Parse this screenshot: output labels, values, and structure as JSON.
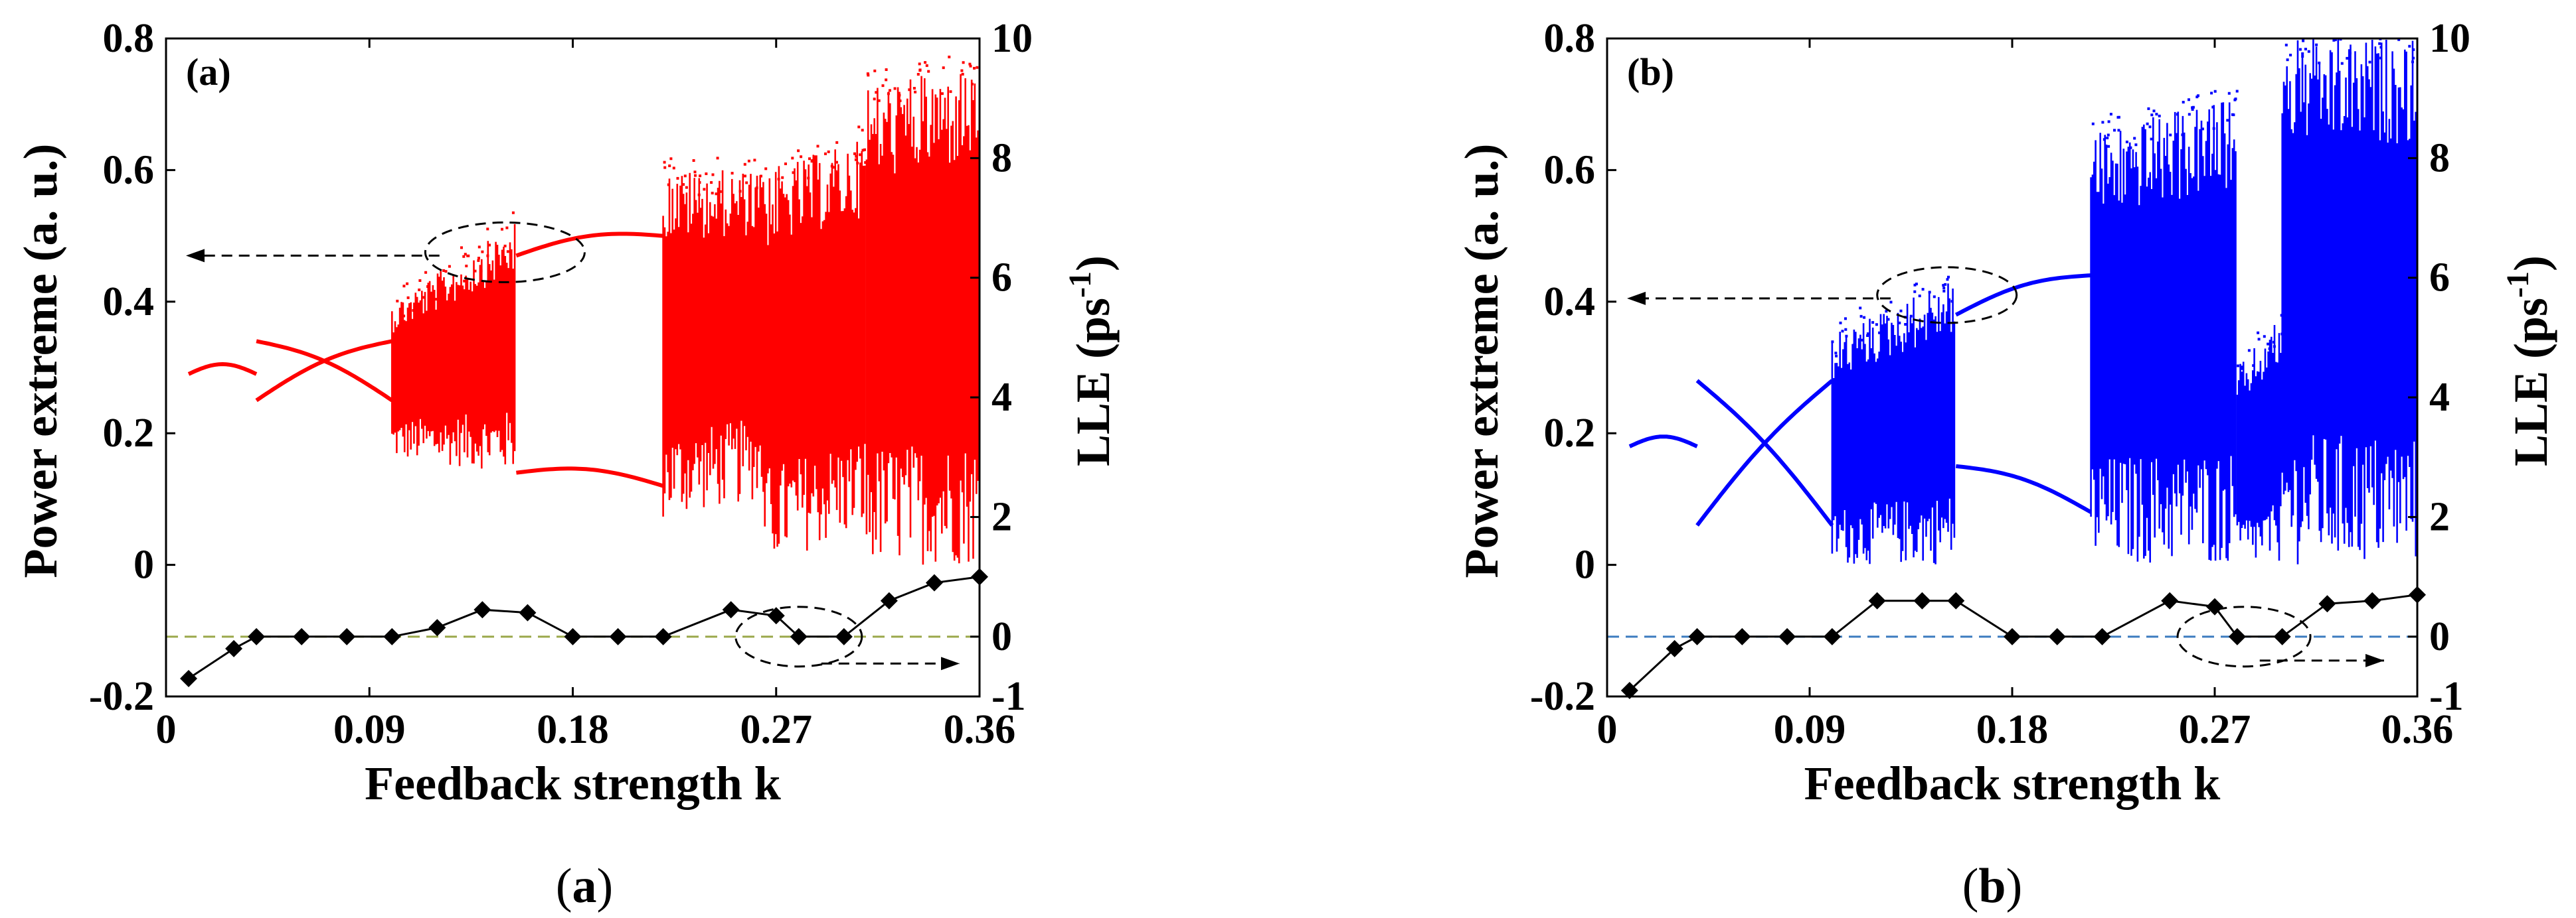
{
  "figure": {
    "captions": [
      {
        "prefix": "(",
        "letter": "a",
        "suffix": ")"
      },
      {
        "prefix": "(",
        "letter": "b",
        "suffix": ")"
      }
    ]
  },
  "chart_data": [
    {
      "type": "scatter",
      "panel_label": "(a)",
      "title": "",
      "xlabel": "Feedback strength  k",
      "ylabel_left": "Power extreme (a. u.)",
      "ylabel_right_base": "LLE (ps",
      "ylabel_right_exp": "-1",
      "ylabel_right_close": ")",
      "xlim": [
        0,
        0.36
      ],
      "ylim_left": [
        -0.2,
        0.8
      ],
      "ylim_right": [
        -1,
        10
      ],
      "xticks": [
        0,
        0.09,
        0.18,
        0.27,
        0.36
      ],
      "xtick_labels": [
        "0",
        "0.09",
        "0.18",
        "0.27",
        "0.36"
      ],
      "yticks_left": [
        -0.2,
        0,
        0.2,
        0.4,
        0.6,
        0.8
      ],
      "ytick_labels_left": [
        "-0.2",
        "0",
        "0.2",
        "0.4",
        "0.6",
        "0.8"
      ],
      "yticks_right": [
        -1,
        0,
        2,
        4,
        6,
        8,
        10
      ],
      "ytick_labels_right": [
        "-1",
        "0",
        "2",
        "4",
        "6",
        "8",
        "10"
      ],
      "bifurcation_color": "#ff0000",
      "zero_line_color": "#9aa84a",
      "lle": {
        "k": [
          0.01,
          0.03,
          0.04,
          0.06,
          0.08,
          0.1,
          0.12,
          0.14,
          0.16,
          0.18,
          0.2,
          0.22,
          0.25,
          0.27,
          0.28,
          0.3,
          0.32,
          0.34,
          0.36
        ],
        "values": [
          -0.7,
          -0.2,
          0.0,
          0.0,
          0.0,
          0.0,
          0.15,
          0.45,
          0.4,
          0.0,
          0.0,
          0.0,
          0.45,
          0.35,
          0.0,
          0.0,
          0.6,
          0.9,
          1.0
        ]
      },
      "bifurcation_regions": [
        {
          "k": [
            0.01,
            0.04
          ],
          "kind": "branch",
          "y": [
            0.29,
            0.29
          ]
        },
        {
          "k": [
            0.04,
            0.1
          ],
          "kind": "branch",
          "y": [
            0.34,
            0.25
          ]
        },
        {
          "k": [
            0.04,
            0.1
          ],
          "kind": "branch",
          "y": [
            0.25,
            0.34
          ]
        },
        {
          "k": [
            0.1,
            0.155
          ],
          "kind": "chaos",
          "ymin": [
            0.16,
            0.14
          ],
          "ymax": [
            0.4,
            0.52
          ]
        },
        {
          "k": [
            0.155,
            0.22
          ],
          "kind": "branch",
          "y": [
            0.47,
            0.5
          ]
        },
        {
          "k": [
            0.155,
            0.22
          ],
          "kind": "branch",
          "y": [
            0.14,
            0.12
          ]
        },
        {
          "k": [
            0.22,
            0.265
          ],
          "kind": "chaos",
          "ymin": [
            0.07,
            0.1
          ],
          "ymax": [
            0.6,
            0.6
          ]
        },
        {
          "k": [
            0.265,
            0.31
          ],
          "kind": "chaos",
          "ymin": [
            0.0,
            0.05
          ],
          "ymax": [
            0.6,
            0.65
          ]
        },
        {
          "k": [
            0.31,
            0.36
          ],
          "kind": "chaos",
          "ymin": [
            0.0,
            0.0
          ],
          "ymax": [
            0.73,
            0.76
          ]
        }
      ],
      "annotations": [
        "dashed ellipse around chaotic band near k = 0.15 with arrow pointing to left axis",
        "dashed ellipse around LLE points near k = 0.28 with arrow pointing to right axis"
      ]
    },
    {
      "type": "scatter",
      "panel_label": "(b)",
      "title": "",
      "xlabel": "Feedback strength  k",
      "ylabel_left": "Power extreme (a. u.)",
      "ylabel_right_base": "LLE (ps",
      "ylabel_right_exp": "-1",
      "ylabel_right_close": ")",
      "xlim": [
        0,
        0.36
      ],
      "ylim_left": [
        -0.2,
        0.8
      ],
      "ylim_right": [
        -1,
        10
      ],
      "xticks": [
        0,
        0.09,
        0.18,
        0.27,
        0.36
      ],
      "xtick_labels": [
        "0",
        "0.09",
        "0.18",
        "0.27",
        "0.36"
      ],
      "yticks_left": [
        -0.2,
        0,
        0.2,
        0.4,
        0.6,
        0.8
      ],
      "ytick_labels_left": [
        "-0.2",
        "0",
        "0.2",
        "0.4",
        "0.6",
        "0.8"
      ],
      "yticks_right": [
        -1,
        0,
        2,
        4,
        6,
        8,
        10
      ],
      "ytick_labels_right": [
        "-1",
        "0",
        "2",
        "4",
        "6",
        "8",
        "10"
      ],
      "bifurcation_color": "#0000ff",
      "zero_line_color": "#3b7bbf",
      "lle": {
        "k": [
          0.01,
          0.03,
          0.04,
          0.06,
          0.08,
          0.1,
          0.12,
          0.14,
          0.155,
          0.18,
          0.2,
          0.22,
          0.25,
          0.27,
          0.28,
          0.3,
          0.32,
          0.34,
          0.36
        ],
        "values": [
          -0.9,
          -0.2,
          0.0,
          0.0,
          0.0,
          0.0,
          0.6,
          0.6,
          0.6,
          0.0,
          0.0,
          0.0,
          0.6,
          0.5,
          0.0,
          0.0,
          0.55,
          0.6,
          0.7
        ]
      },
      "bifurcation_regions": [
        {
          "k": [
            0.01,
            0.04
          ],
          "kind": "branch",
          "y": [
            0.18,
            0.18
          ]
        },
        {
          "k": [
            0.04,
            0.1
          ],
          "kind": "branch",
          "y": [
            0.28,
            0.06
          ]
        },
        {
          "k": [
            0.04,
            0.1
          ],
          "kind": "branch",
          "y": [
            0.06,
            0.28
          ]
        },
        {
          "k": [
            0.1,
            0.155
          ],
          "kind": "chaos",
          "ymin": [
            0.0,
            0.0
          ],
          "ymax": [
            0.35,
            0.44
          ]
        },
        {
          "k": [
            0.155,
            0.215
          ],
          "kind": "branch",
          "y": [
            0.38,
            0.44
          ]
        },
        {
          "k": [
            0.155,
            0.215
          ],
          "kind": "branch",
          "y": [
            0.15,
            0.08
          ]
        },
        {
          "k": [
            0.215,
            0.28
          ],
          "kind": "chaos",
          "ymin": [
            0.0,
            0.0
          ],
          "ymax": [
            0.66,
            0.71
          ]
        },
        {
          "k": [
            0.28,
            0.3
          ],
          "kind": "chaos",
          "ymin": [
            0.0,
            0.0
          ],
          "ymax": [
            0.3,
            0.38
          ]
        },
        {
          "k": [
            0.3,
            0.36
          ],
          "kind": "chaos",
          "ymin": [
            0.0,
            0.0
          ],
          "ymax": [
            0.8,
            0.8
          ]
        }
      ],
      "annotations": [
        "dashed ellipse around chaotic band near k = 0.15 with arrow pointing to left axis",
        "dashed ellipse around LLE points near k = 0.28 with arrow pointing to right axis"
      ]
    }
  ]
}
